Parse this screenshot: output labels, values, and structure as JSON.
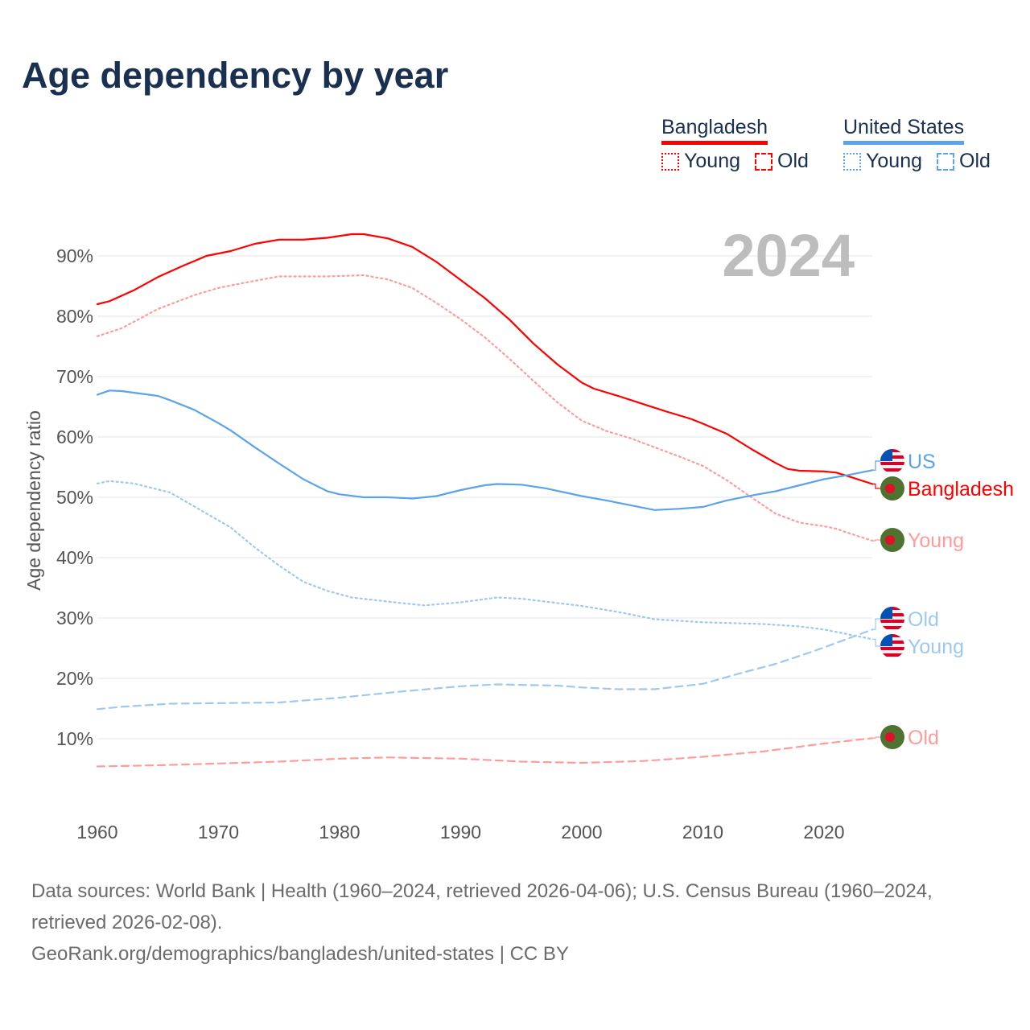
{
  "title": "Age dependency by year",
  "legend": {
    "groups": [
      {
        "name": "Bangladesh",
        "color": "#ff0000",
        "items": [
          "Young",
          "Old"
        ]
      },
      {
        "name": "United States",
        "color": "#5ba3ea",
        "items": [
          "Young",
          "Old"
        ]
      }
    ]
  },
  "footer": {
    "sources": "Data sources: World Bank | Health (1960–2024, retrieved 2026-04-06); U.S. Census Bureau (1960–2024, retrieved 2026-02-08).",
    "credit": "GeoRank.org/demographics/bangladesh/united-states | CC BY"
  },
  "chart_data": {
    "type": "line",
    "title": "Age dependency by year",
    "ylabel": "Age dependency ratio",
    "xlabel": "",
    "year_label": "2024",
    "xlim": [
      1960,
      2024
    ],
    "ylim": [
      0,
      95
    ],
    "x_ticks": [
      1960,
      1970,
      1980,
      1990,
      2000,
      2010,
      2020
    ],
    "y_ticks": [
      10,
      20,
      30,
      40,
      50,
      60,
      70,
      80,
      90
    ],
    "y_tick_labels": [
      "10%",
      "20%",
      "30%",
      "40%",
      "50%",
      "60%",
      "70%",
      "80%",
      "90%"
    ],
    "grid": true,
    "legend_position": "top-right",
    "series": [
      {
        "name": "Bangladesh",
        "end_label": "Bangladesh",
        "style": "solid",
        "color": "#ff0000",
        "flag": "bd",
        "x": [
          1960,
          1961,
          1963,
          1965,
          1967,
          1969,
          1971,
          1973,
          1975,
          1977,
          1979,
          1981,
          1982,
          1984,
          1986,
          1988,
          1990,
          1992,
          1994,
          1996,
          1998,
          2000,
          2001,
          2003,
          2005,
          2007,
          2009,
          2010,
          2012,
          2014,
          2016,
          2017,
          2018,
          2020,
          2021,
          2022,
          2024
        ],
        "y": [
          82.0,
          82.5,
          84.3,
          86.5,
          88.3,
          90.0,
          90.8,
          92.0,
          92.7,
          92.7,
          93.0,
          93.6,
          93.6,
          92.9,
          91.5,
          89.0,
          86.0,
          83.0,
          79.5,
          75.5,
          72.0,
          69.0,
          68.0,
          66.8,
          65.5,
          64.2,
          63.0,
          62.2,
          60.5,
          58.0,
          55.7,
          54.7,
          54.4,
          54.3,
          54.1,
          53.5,
          52.2
        ]
      },
      {
        "name": "Bangladesh Young",
        "end_label": "Young",
        "style": "dotted",
        "color": "#ff9b9b",
        "flag": "bd",
        "x": [
          1960,
          1962,
          1965,
          1968,
          1970,
          1972,
          1975,
          1979,
          1982,
          1984,
          1986,
          1988,
          1990,
          1992,
          1994,
          1996,
          1998,
          2000,
          2002,
          2004,
          2006,
          2008,
          2010,
          2012,
          2014,
          2016,
          2018,
          2020,
          2021,
          2022,
          2024
        ],
        "y": [
          76.7,
          78.0,
          81.2,
          83.5,
          84.7,
          85.5,
          86.6,
          86.6,
          86.8,
          86.1,
          84.7,
          82.2,
          79.5,
          76.5,
          73.0,
          69.3,
          65.7,
          62.7,
          61.0,
          59.8,
          58.3,
          56.8,
          55.2,
          52.8,
          50.0,
          47.3,
          45.8,
          45.2,
          44.8,
          44.1,
          42.8
        ]
      },
      {
        "name": "Bangladesh Old",
        "end_label": "Old",
        "style": "dashed",
        "color": "#ff9b9b",
        "flag": "bd",
        "x": [
          1960,
          1965,
          1970,
          1975,
          1980,
          1984,
          1990,
          1995,
          2000,
          2005,
          2010,
          2015,
          2020,
          2024
        ],
        "y": [
          5.4,
          5.6,
          5.9,
          6.2,
          6.7,
          6.9,
          6.7,
          6.2,
          6.0,
          6.3,
          7.0,
          7.9,
          9.2,
          10.1
        ]
      },
      {
        "name": "United States",
        "end_label": "US",
        "style": "solid",
        "color": "#5ba3ea",
        "flag": "us",
        "x": [
          1960,
          1961,
          1962,
          1965,
          1966,
          1968,
          1970,
          1971,
          1973,
          1975,
          1977,
          1979,
          1980,
          1982,
          1984,
          1986,
          1988,
          1990,
          1992,
          1993,
          1995,
          1997,
          2000,
          2002,
          2004,
          2006,
          2008,
          2010,
          2012,
          2014,
          2016,
          2018,
          2020,
          2022,
          2024
        ],
        "y": [
          67.0,
          67.7,
          67.6,
          66.8,
          66.1,
          64.5,
          62.3,
          61.1,
          58.3,
          55.6,
          53.0,
          51.0,
          50.5,
          50.0,
          50.0,
          49.8,
          50.2,
          51.2,
          52.0,
          52.2,
          52.1,
          51.5,
          50.2,
          49.5,
          48.7,
          47.9,
          48.1,
          48.4,
          49.5,
          50.3,
          51.0,
          52.0,
          53.0,
          53.7,
          54.5
        ]
      },
      {
        "name": "United States Young",
        "end_label": "Young",
        "style": "dotted",
        "color": "#9ec8f0",
        "flag": "us",
        "x": [
          1960,
          1961,
          1963,
          1966,
          1968,
          1971,
          1973,
          1975,
          1977,
          1979,
          1981,
          1985,
          1987,
          1990,
          1993,
          1995,
          2000,
          2003,
          2006,
          2010,
          2015,
          2018,
          2020,
          2022,
          2024
        ],
        "y": [
          52.3,
          52.7,
          52.3,
          50.8,
          48.5,
          45.0,
          41.7,
          38.7,
          36.0,
          34.5,
          33.4,
          32.5,
          32.1,
          32.6,
          33.4,
          33.2,
          32.0,
          31.0,
          29.8,
          29.3,
          29.0,
          28.6,
          28.1,
          27.3,
          26.5
        ]
      },
      {
        "name": "United States Old",
        "end_label": "Old",
        "style": "dashed",
        "color": "#9ec8f0",
        "flag": "us",
        "x": [
          1960,
          1962,
          1966,
          1970,
          1975,
          1980,
          1985,
          1990,
          1993,
          1998,
          2000,
          2003,
          2006,
          2010,
          2013,
          2016,
          2019,
          2022,
          2024
        ],
        "y": [
          14.9,
          15.3,
          15.8,
          15.9,
          16.0,
          16.8,
          17.8,
          18.7,
          19.0,
          18.8,
          18.5,
          18.2,
          18.2,
          19.1,
          20.8,
          22.4,
          24.4,
          26.6,
          28.1
        ]
      }
    ]
  }
}
